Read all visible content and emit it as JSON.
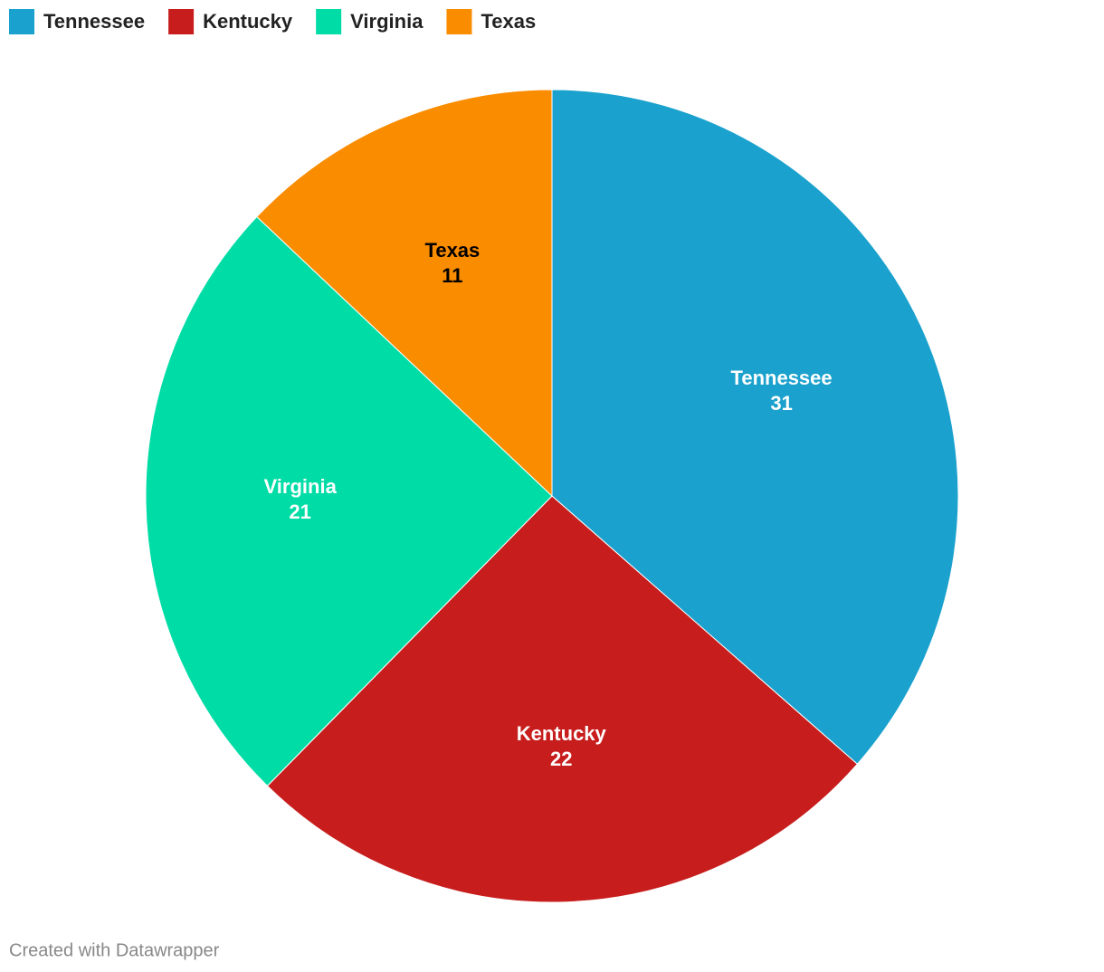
{
  "chart_data": {
    "type": "pie",
    "categories": [
      "Tennessee",
      "Kentucky",
      "Virginia",
      "Texas"
    ],
    "values": [
      31,
      22,
      21,
      11
    ],
    "colors": [
      "#1aa1cd",
      "#c71e1d",
      "#00dca6",
      "#fa8c00"
    ],
    "legend": "top-left",
    "credit": "Created with Datawrapper"
  }
}
